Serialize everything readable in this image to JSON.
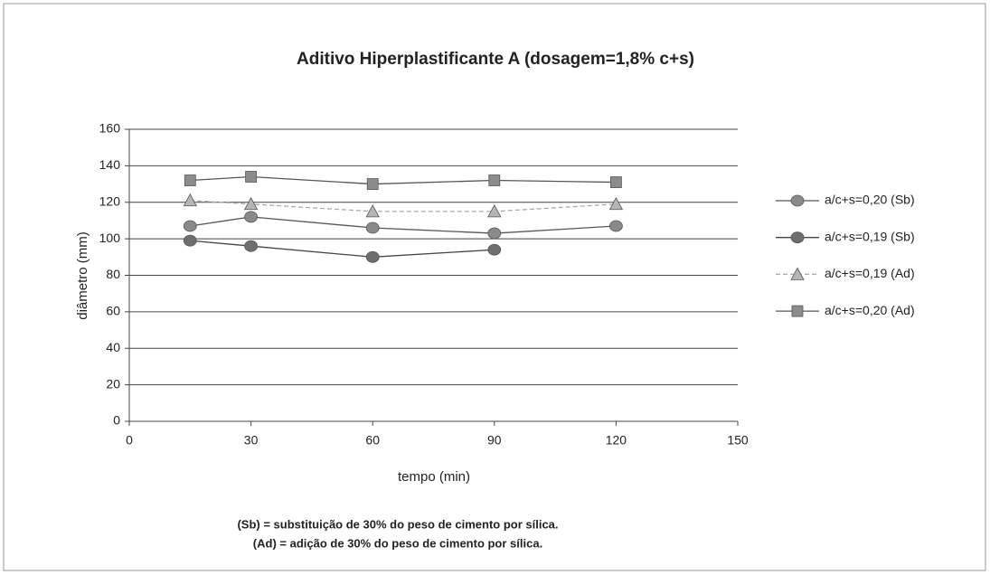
{
  "chart_data": {
    "type": "line",
    "title": "Aditivo Hiperplastificante A (dosagem=1,8% c+s)",
    "xlabel": "tempo (min)",
    "ylabel": "diâmetro (mm)",
    "x": [
      15,
      30,
      60,
      90,
      120
    ],
    "series": [
      {
        "name": "a/c+s=0,20 (Sb)",
        "color": "#8a8a8a",
        "line_color": "#555555",
        "marker": "circle",
        "values": [
          107,
          112,
          106,
          103,
          107
        ]
      },
      {
        "name": "a/c+s=0,19 (Sb)",
        "color": "#6e6e6e",
        "line_color": "#444444",
        "marker": "circle",
        "values": [
          99,
          96,
          90,
          94,
          null
        ]
      },
      {
        "name": "a/c+s=0,19 (Ad)",
        "color": "#b5b5b5",
        "line_color": "#aaaaaa",
        "marker": "triangle",
        "dashed": true,
        "values": [
          121,
          119,
          115,
          115,
          119
        ]
      },
      {
        "name": "a/c+s=0,20 (Ad)",
        "color": "#8c8c8c",
        "line_color": "#555555",
        "marker": "square",
        "values": [
          132,
          134,
          130,
          132,
          131
        ]
      }
    ],
    "xlim": [
      0,
      150
    ],
    "xticks": [
      0,
      30,
      60,
      90,
      120,
      150
    ],
    "ylim": [
      0,
      160
    ],
    "yticks": [
      0,
      20,
      40,
      60,
      80,
      100,
      120,
      140,
      160
    ],
    "grid": true,
    "legend": "right",
    "notes": [
      "(Sb) = substituição de 30% do peso de cimento por sílica.",
      "(Ad) = adição de 30% do peso de cimento por sílica."
    ]
  }
}
